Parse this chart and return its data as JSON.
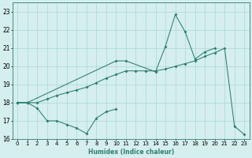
{
  "xlabel": "Humidex (Indice chaleur)",
  "x_values": [
    0,
    1,
    2,
    3,
    4,
    5,
    6,
    7,
    8,
    9,
    10,
    11,
    12,
    13,
    14,
    15,
    16,
    17,
    18,
    19,
    20,
    21,
    22,
    23
  ],
  "line_upper": [
    18.0,
    18.0,
    null,
    null,
    null,
    null,
    null,
    null,
    null,
    null,
    20.3,
    20.3,
    null,
    null,
    19.7,
    21.1,
    22.85,
    21.9,
    20.4,
    20.8,
    21.0,
    null,
    null,
    null
  ],
  "line_lower": [
    18.0,
    18.0,
    17.7,
    17.0,
    17.0,
    16.8,
    16.6,
    16.3,
    17.15,
    17.5,
    17.65,
    null,
    null,
    null,
    null,
    null,
    null,
    null,
    null,
    null,
    null,
    null,
    null,
    null
  ],
  "line_diag": [
    18.0,
    18.0,
    18.0,
    18.2,
    18.4,
    18.55,
    18.7,
    18.85,
    19.1,
    19.35,
    19.55,
    19.75,
    19.75,
    19.75,
    19.75,
    19.85,
    20.0,
    20.15,
    20.3,
    20.55,
    20.75,
    21.0,
    16.7,
    16.25
  ],
  "line_color": "#2d7d6e",
  "bg_color": "#d5eeee",
  "grid_color": "#aad8d8",
  "ylim": [
    16,
    23.5
  ],
  "yticks": [
    16,
    17,
    18,
    19,
    20,
    21,
    22,
    23
  ],
  "xlim": [
    -0.5,
    23.5
  ],
  "tick_fontsize": 5.0,
  "xlabel_fontsize": 5.5
}
